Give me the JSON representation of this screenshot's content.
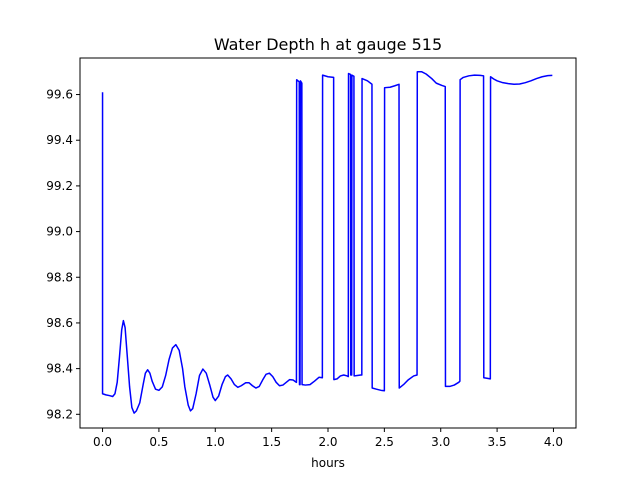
{
  "chart_data": {
    "type": "line",
    "title": "Water Depth h at gauge 515",
    "xlabel": "hours",
    "ylabel": "",
    "xlim": [
      -0.2,
      4.2
    ],
    "ylim": [
      98.14,
      99.76
    ],
    "grid": false,
    "x_ticks": [
      0.0,
      0.5,
      1.0,
      1.5,
      2.0,
      2.5,
      3.0,
      3.5,
      4.0
    ],
    "x_tick_labels": [
      "0.0",
      "0.5",
      "1.0",
      "1.5",
      "2.0",
      "2.5",
      "3.0",
      "3.5",
      "4.0"
    ],
    "y_ticks": [
      98.2,
      98.4,
      98.6,
      98.8,
      99.0,
      99.2,
      99.4,
      99.6
    ],
    "y_tick_labels": [
      "98.2",
      "98.4",
      "98.6",
      "98.8",
      "99.0",
      "99.2",
      "99.4",
      "99.6"
    ],
    "series": [
      {
        "name": "",
        "color": "#0000ff",
        "points": [
          [
            0.0,
            99.61
          ],
          [
            0.0,
            98.29
          ],
          [
            0.03,
            98.285
          ],
          [
            0.06,
            98.282
          ],
          [
            0.09,
            98.278
          ],
          [
            0.11,
            98.29
          ],
          [
            0.13,
            98.34
          ],
          [
            0.15,
            98.45
          ],
          [
            0.17,
            98.57
          ],
          [
            0.185,
            98.61
          ],
          [
            0.2,
            98.58
          ],
          [
            0.22,
            98.45
          ],
          [
            0.24,
            98.32
          ],
          [
            0.26,
            98.23
          ],
          [
            0.28,
            98.205
          ],
          [
            0.3,
            98.215
          ],
          [
            0.33,
            98.25
          ],
          [
            0.36,
            98.33
          ],
          [
            0.38,
            98.38
          ],
          [
            0.4,
            98.395
          ],
          [
            0.42,
            98.38
          ],
          [
            0.44,
            98.345
          ],
          [
            0.47,
            98.31
          ],
          [
            0.5,
            98.305
          ],
          [
            0.53,
            98.32
          ],
          [
            0.56,
            98.37
          ],
          [
            0.59,
            98.44
          ],
          [
            0.62,
            98.49
          ],
          [
            0.65,
            98.505
          ],
          [
            0.68,
            98.48
          ],
          [
            0.71,
            98.4
          ],
          [
            0.73,
            98.32
          ],
          [
            0.76,
            98.24
          ],
          [
            0.78,
            98.215
          ],
          [
            0.8,
            98.225
          ],
          [
            0.83,
            98.29
          ],
          [
            0.86,
            98.37
          ],
          [
            0.89,
            98.398
          ],
          [
            0.92,
            98.38
          ],
          [
            0.95,
            98.33
          ],
          [
            0.98,
            98.275
          ],
          [
            1.0,
            98.26
          ],
          [
            1.03,
            98.28
          ],
          [
            1.06,
            98.33
          ],
          [
            1.09,
            98.365
          ],
          [
            1.11,
            98.372
          ],
          [
            1.14,
            98.355
          ],
          [
            1.17,
            98.33
          ],
          [
            1.2,
            98.318
          ],
          [
            1.23,
            98.325
          ],
          [
            1.27,
            98.338
          ],
          [
            1.3,
            98.338
          ],
          [
            1.33,
            98.325
          ],
          [
            1.36,
            98.315
          ],
          [
            1.39,
            98.322
          ],
          [
            1.42,
            98.35
          ],
          [
            1.45,
            98.375
          ],
          [
            1.48,
            98.38
          ],
          [
            1.51,
            98.365
          ],
          [
            1.54,
            98.34
          ],
          [
            1.57,
            98.325
          ],
          [
            1.6,
            98.328
          ],
          [
            1.63,
            98.34
          ],
          [
            1.66,
            98.352
          ],
          [
            1.69,
            98.35
          ],
          [
            1.72,
            98.34
          ],
          [
            1.722,
            99.665
          ],
          [
            1.745,
            99.655
          ],
          [
            1.747,
            98.33
          ],
          [
            1.752,
            98.33
          ],
          [
            1.755,
            99.66
          ],
          [
            1.768,
            99.65
          ],
          [
            1.77,
            98.33
          ],
          [
            1.8,
            98.328
          ],
          [
            1.84,
            98.33
          ],
          [
            1.88,
            98.345
          ],
          [
            1.92,
            98.362
          ],
          [
            1.95,
            98.36
          ],
          [
            1.952,
            99.685
          ],
          [
            2.0,
            99.678
          ],
          [
            2.05,
            99.675
          ],
          [
            2.052,
            98.352
          ],
          [
            2.08,
            98.355
          ],
          [
            2.11,
            98.368
          ],
          [
            2.14,
            98.372
          ],
          [
            2.17,
            98.368
          ],
          [
            2.18,
            98.365
          ],
          [
            2.182,
            99.692
          ],
          [
            2.2,
            99.688
          ],
          [
            2.202,
            98.372
          ],
          [
            2.21,
            98.372
          ],
          [
            2.212,
            99.685
          ],
          [
            2.23,
            99.68
          ],
          [
            2.232,
            98.368
          ],
          [
            2.26,
            98.37
          ],
          [
            2.29,
            98.372
          ],
          [
            2.3,
            98.372
          ],
          [
            2.302,
            99.67
          ],
          [
            2.35,
            99.66
          ],
          [
            2.39,
            99.645
          ],
          [
            2.392,
            98.315
          ],
          [
            2.43,
            98.31
          ],
          [
            2.47,
            98.305
          ],
          [
            2.5,
            98.303
          ],
          [
            2.502,
            99.63
          ],
          [
            2.55,
            99.632
          ],
          [
            2.59,
            99.638
          ],
          [
            2.63,
            99.645
          ],
          [
            2.632,
            98.315
          ],
          [
            2.67,
            98.33
          ],
          [
            2.71,
            98.35
          ],
          [
            2.76,
            98.368
          ],
          [
            2.79,
            98.372
          ],
          [
            2.792,
            99.7
          ],
          [
            2.83,
            99.7
          ],
          [
            2.87,
            99.69
          ],
          [
            2.92,
            99.67
          ],
          [
            2.96,
            99.65
          ],
          [
            3.01,
            99.64
          ],
          [
            3.04,
            99.635
          ],
          [
            3.042,
            98.322
          ],
          [
            3.08,
            98.322
          ],
          [
            3.12,
            98.328
          ],
          [
            3.16,
            98.34
          ],
          [
            3.17,
            98.345
          ],
          [
            3.172,
            99.665
          ],
          [
            3.2,
            99.675
          ],
          [
            3.25,
            99.682
          ],
          [
            3.3,
            99.685
          ],
          [
            3.35,
            99.684
          ],
          [
            3.38,
            99.682
          ],
          [
            3.382,
            98.36
          ],
          [
            3.41,
            98.358
          ],
          [
            3.44,
            98.355
          ],
          [
            3.442,
            99.678
          ],
          [
            3.47,
            99.668
          ],
          [
            3.5,
            99.66
          ],
          [
            3.55,
            99.652
          ],
          [
            3.6,
            99.648
          ],
          [
            3.65,
            99.645
          ],
          [
            3.7,
            99.646
          ],
          [
            3.75,
            99.652
          ],
          [
            3.8,
            99.66
          ],
          [
            3.85,
            99.67
          ],
          [
            3.9,
            99.678
          ],
          [
            3.95,
            99.683
          ],
          [
            3.99,
            99.684
          ]
        ]
      }
    ]
  }
}
